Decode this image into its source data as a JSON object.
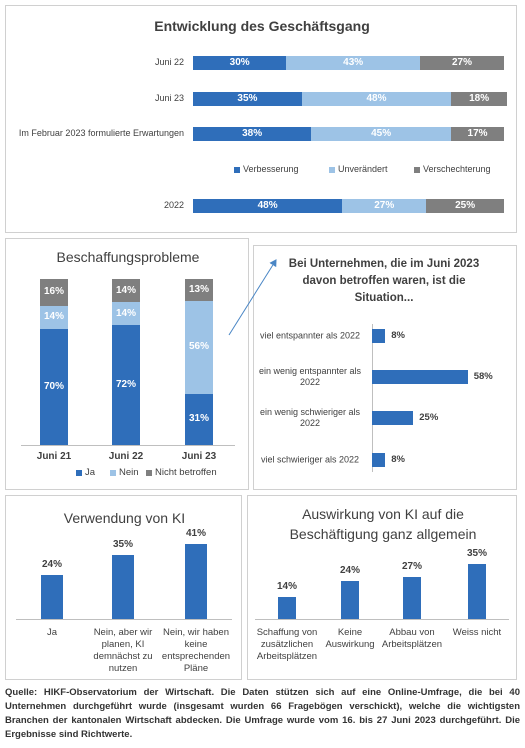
{
  "chart_data": [
    {
      "type": "hbar-stacked",
      "title": "Entwicklung des Geschäftsgang",
      "categories": [
        "Juni 22",
        "Juni 23",
        "Im Februar 2023 formulierte Erwartungen",
        "2022"
      ],
      "series": [
        {
          "name": "Verbesserung",
          "color": "#2f6eba",
          "values": [
            30,
            35,
            38,
            48
          ],
          "value_labels": [
            "30%",
            "35%",
            "38%",
            "48%"
          ]
        },
        {
          "name": "Unverändert",
          "color": "#9dc3e6",
          "values": [
            43,
            48,
            45,
            27
          ],
          "value_labels": [
            "43%",
            "48%",
            "45%",
            "27%"
          ]
        },
        {
          "name": "Verschechterung",
          "color": "#7f7f7f",
          "values": [
            27,
            18,
            17,
            25
          ],
          "value_labels": [
            "27%",
            "18%",
            "17%",
            "25%"
          ]
        }
      ]
    },
    {
      "type": "vbar-stacked",
      "title": "Beschaffungsprobleme",
      "categories": [
        "Juni 21",
        "Juni 22",
        "Juni 23"
      ],
      "series": [
        {
          "name": "Ja",
          "color": "#2f6eba",
          "values": [
            70,
            72,
            31
          ],
          "value_labels": [
            "70%",
            "72%",
            "31%"
          ]
        },
        {
          "name": "Nein",
          "color": "#9dc3e6",
          "values": [
            14,
            14,
            56
          ],
          "value_labels": [
            "14%",
            "14%",
            "56%"
          ]
        },
        {
          "name": "Nicht betroffen",
          "color": "#7f7f7f",
          "values": [
            16,
            14,
            13
          ],
          "value_labels": [
            "16%",
            "14%",
            "13%"
          ]
        }
      ]
    },
    {
      "type": "hbar",
      "title": "Bei Unternehmen, die im Juni 2023 davon betroffen waren, ist die Situation...",
      "categories": [
        "viel entspannter als 2022",
        "ein wenig entspannter als 2022",
        "ein wenig schwieriger als 2022",
        "viel schwieriger als 2022"
      ],
      "values": [
        8,
        58,
        25,
        8
      ],
      "value_labels": [
        "8%",
        "58%",
        "25%",
        "8%"
      ],
      "color": "#2f6eba"
    },
    {
      "type": "vbar",
      "title": "Verwendung von KI",
      "categories": [
        "Ja",
        "Nein, aber wir planen, KI demnächst zu nutzen",
        "Nein, wir haben keine entsprechenden Pläne"
      ],
      "values": [
        24,
        35,
        41
      ],
      "value_labels": [
        "24%",
        "35%",
        "41%"
      ],
      "color": "#2f6eba"
    },
    {
      "type": "vbar",
      "title": "Auswirkung von KI auf die Beschäftigung ganz allgemein",
      "categories": [
        "Schaffung von zusätzlichen Arbeitsplätzen",
        "Keine Auswirkung",
        "Abbau von Arbeitsplätzen",
        "Weiss nicht"
      ],
      "values": [
        14,
        24,
        27,
        35
      ],
      "value_labels": [
        "14%",
        "24%",
        "27%",
        "35%"
      ],
      "color": "#2f6eba"
    }
  ],
  "source": "Quelle: HIKF-Observatorium der Wirtschaft. Die Daten stützen sich auf eine Online-Umfrage, die bei 40 Unternehmen durchgeführt wurde (insgesamt wurden 66 Fragebögen verschickt), welche die wichtigsten Branchen der kantonalen Wirtschaft abdecken. Die Umfrage wurde vom 16. bis 27 Juni 2023 durchgeführt. Die Ergebnisse sind Richtwerte."
}
